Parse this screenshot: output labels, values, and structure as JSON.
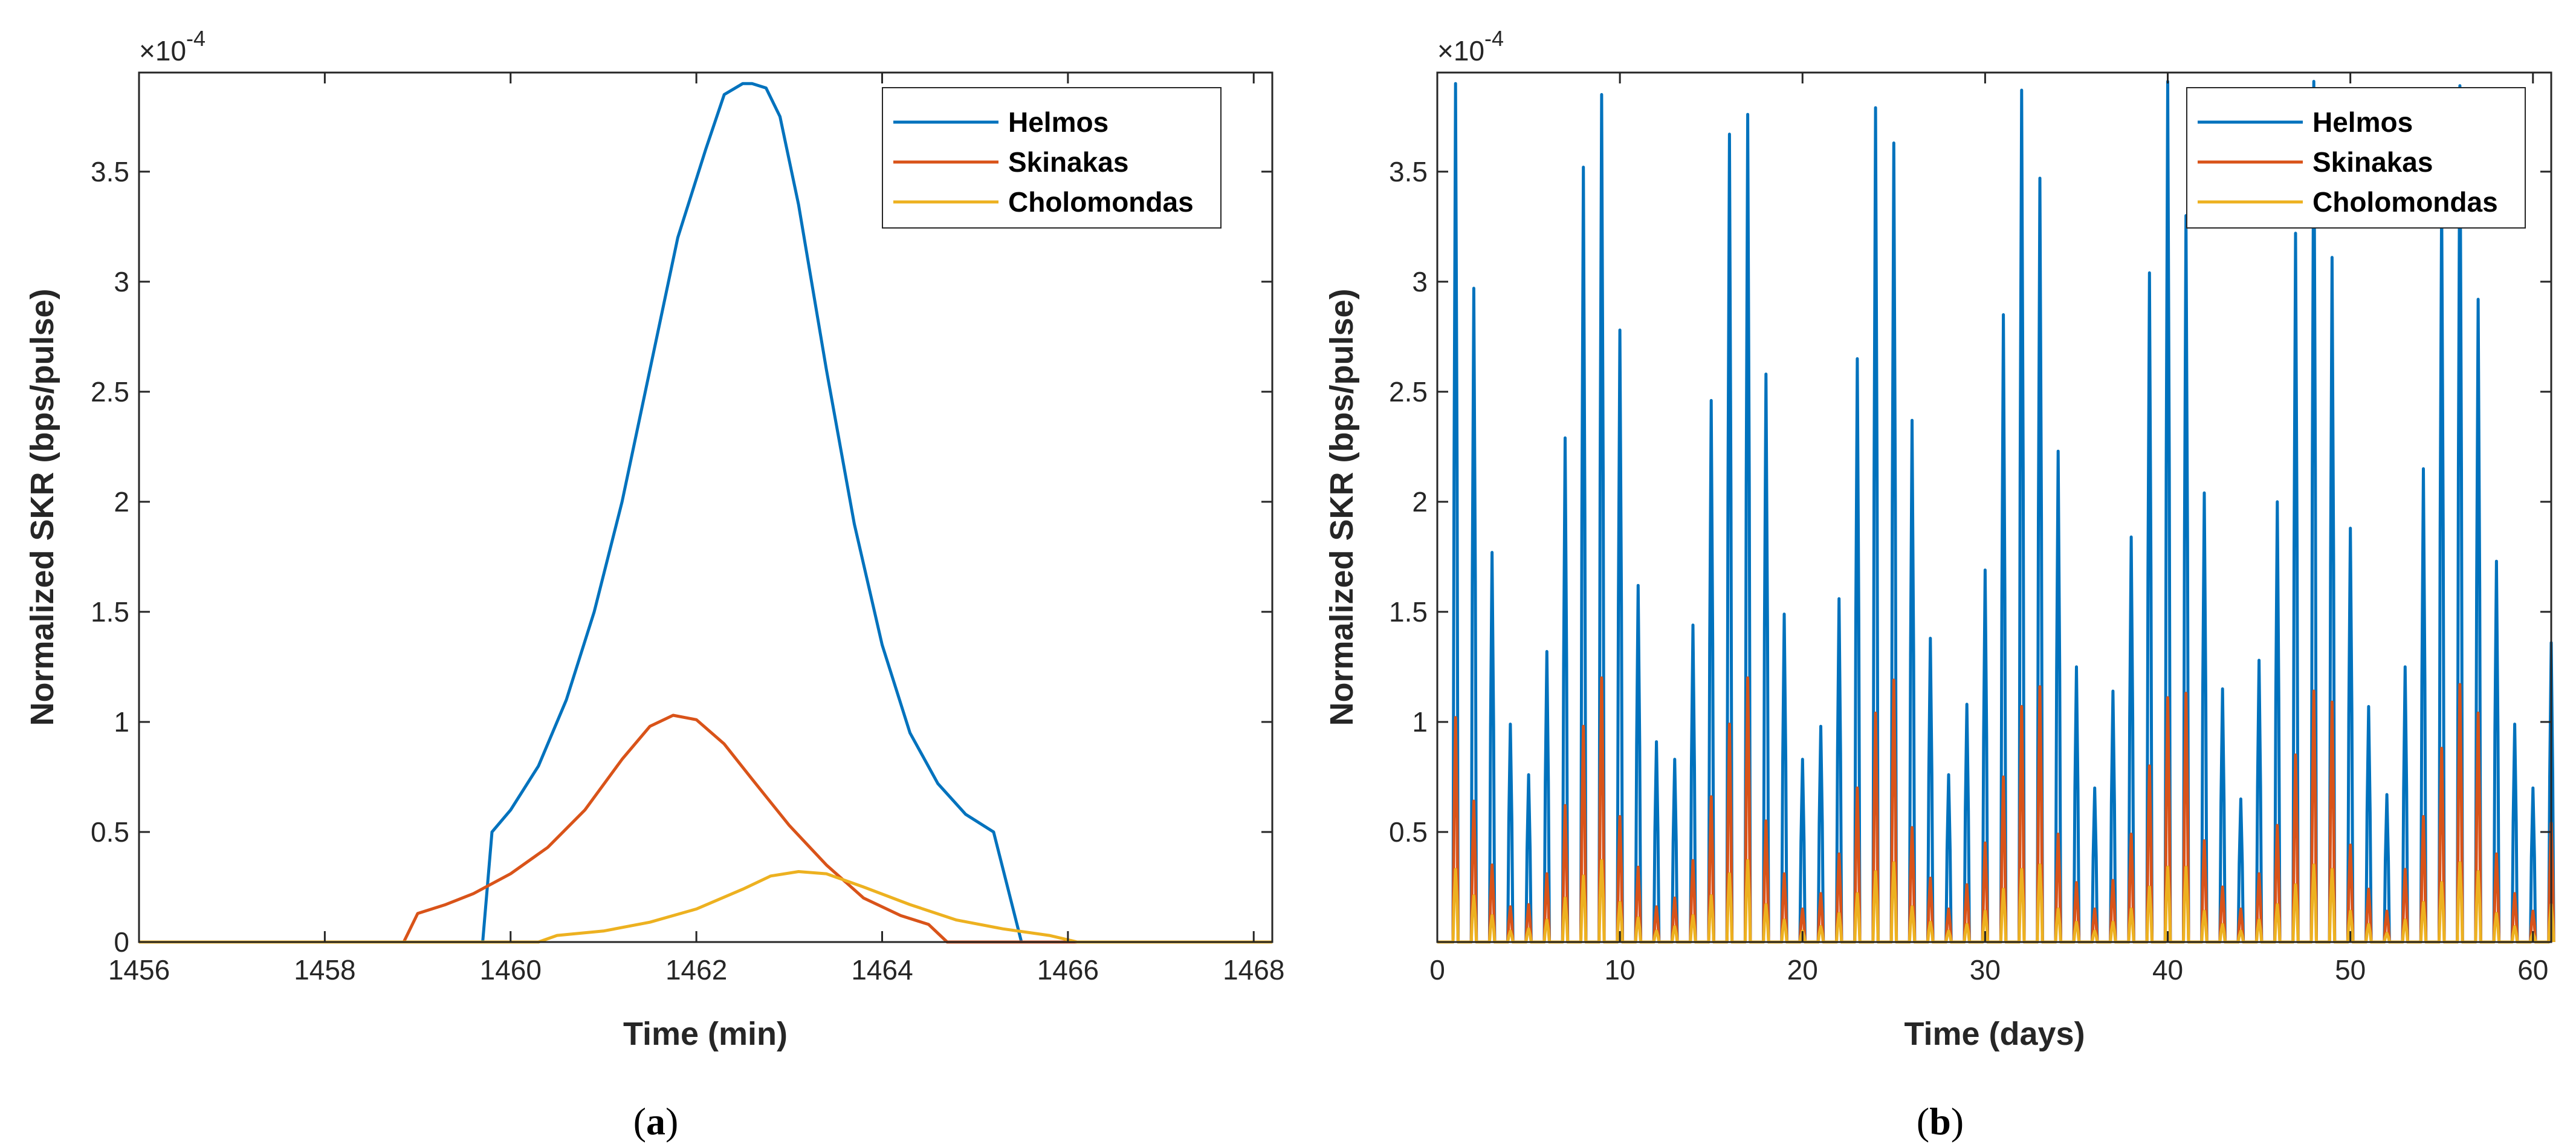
{
  "colors": {
    "helmos": "#0072BD",
    "skinakas": "#D95319",
    "cholomondas": "#EDB120",
    "axis": "#262626"
  },
  "chart_data": [
    {
      "type": "line",
      "panel_label": "a",
      "xlabel": "Time (min)",
      "ylabel": "Normalized SKR (bps/pulse)",
      "y_exponent": "×10",
      "y_exponent_power": "-4",
      "xlim": [
        1456,
        1468.2
      ],
      "ylim": [
        0,
        3.95
      ],
      "y_scale": 0.0001,
      "x_ticks": [
        1456,
        1458,
        1460,
        1462,
        1464,
        1466,
        1468
      ],
      "x_tick_labels": [
        "1456",
        "1458",
        "1460",
        "1462",
        "1464",
        "1466",
        "1468"
      ],
      "y_ticks": [
        0,
        0.5,
        1,
        1.5,
        2,
        2.5,
        3,
        3.5
      ],
      "y_tick_labels": [
        "0",
        "0.5",
        "1",
        "1.5",
        "2",
        "2.5",
        "3",
        "3.5"
      ],
      "legend_position": "top-right",
      "series": [
        {
          "name": "Helmos",
          "x": [
            1456,
            1459.7,
            1459.8,
            1460.0,
            1460.3,
            1460.6,
            1460.9,
            1461.2,
            1461.5,
            1461.8,
            1462.1,
            1462.3,
            1462.5,
            1462.6,
            1462.75,
            1462.9,
            1463.1,
            1463.4,
            1463.7,
            1464.0,
            1464.3,
            1464.6,
            1464.9,
            1465.2,
            1465.35,
            1465.5,
            1468.2
          ],
          "y": [
            0,
            0,
            0.5,
            0.6,
            0.8,
            1.1,
            1.5,
            2.0,
            2.6,
            3.2,
            3.6,
            3.85,
            3.9,
            3.9,
            3.88,
            3.75,
            3.35,
            2.6,
            1.9,
            1.35,
            0.95,
            0.72,
            0.58,
            0.5,
            0.25,
            0,
            0
          ]
        },
        {
          "name": "Skinakas",
          "x": [
            1456,
            1458.85,
            1459.0,
            1459.3,
            1459.6,
            1460.0,
            1460.4,
            1460.8,
            1461.2,
            1461.5,
            1461.75,
            1462.0,
            1462.3,
            1462.6,
            1463.0,
            1463.4,
            1463.8,
            1464.2,
            1464.5,
            1464.7,
            1468.2
          ],
          "y": [
            0,
            0,
            0.13,
            0.17,
            0.22,
            0.31,
            0.43,
            0.6,
            0.83,
            0.98,
            1.03,
            1.01,
            0.9,
            0.74,
            0.53,
            0.35,
            0.2,
            0.12,
            0.08,
            0,
            0
          ]
        },
        {
          "name": "Cholomondas",
          "x": [
            1456,
            1460.3,
            1460.5,
            1461.0,
            1461.5,
            1462.0,
            1462.5,
            1462.8,
            1463.1,
            1463.4,
            1463.8,
            1464.3,
            1464.8,
            1465.3,
            1465.8,
            1466.1,
            1468.2
          ],
          "y": [
            0,
            0,
            0.03,
            0.05,
            0.09,
            0.15,
            0.24,
            0.3,
            0.32,
            0.31,
            0.25,
            0.17,
            0.1,
            0.06,
            0.03,
            0,
            0
          ]
        }
      ]
    },
    {
      "type": "line",
      "panel_label": "b",
      "xlabel": "Time (days)",
      "ylabel": "Normalized SKR (bps/pulse)",
      "y_exponent": "×10",
      "y_exponent_power": "-4",
      "xlim": [
        0,
        61
      ],
      "ylim": [
        0,
        3.95
      ],
      "y_scale": 0.0001,
      "x_ticks": [
        0,
        10,
        20,
        30,
        40,
        50,
        60
      ],
      "x_tick_labels": [
        "0",
        "10",
        "20",
        "30",
        "40",
        "50",
        "60"
      ],
      "y_ticks": [
        0.5,
        1,
        1.5,
        2,
        2.5,
        3,
        3.5
      ],
      "y_tick_labels": [
        "0.5",
        "1",
        "1.5",
        "2",
        "2.5",
        "3",
        "3.5"
      ],
      "legend_position": "top-right",
      "spike_days": [
        1,
        2,
        3,
        4,
        5,
        6,
        7,
        8,
        9,
        10,
        11,
        12,
        13,
        14,
        15,
        16,
        17,
        18,
        19,
        20,
        21,
        22,
        23,
        24,
        25,
        26,
        27,
        28,
        29,
        30,
        31,
        32,
        33,
        34,
        35,
        36,
        37,
        38,
        39,
        40,
        41,
        42,
        43,
        44,
        45,
        46,
        47,
        48,
        49,
        50,
        51,
        52,
        53,
        54,
        55,
        56,
        57,
        58,
        59,
        60,
        61
      ],
      "series": [
        {
          "name": "Helmos",
          "peaks": [
            3.9,
            2.97,
            1.77,
            0.99,
            0.76,
            1.32,
            2.29,
            3.52,
            3.85,
            2.78,
            1.62,
            0.91,
            0.83,
            1.44,
            2.46,
            3.67,
            3.76,
            2.58,
            1.49,
            0.83,
            0.98,
            1.56,
            2.65,
            3.79,
            3.63,
            2.37,
            1.38,
            0.76,
            1.08,
            1.69,
            2.85,
            3.87,
            3.47,
            2.23,
            1.25,
            0.7,
            1.14,
            1.84,
            3.04,
            3.91,
            3.3,
            2.04,
            1.15,
            0.65,
            1.28,
            2.0,
            3.22,
            3.91,
            3.11,
            1.88,
            1.07,
            0.67,
            1.25,
            2.15,
            3.39,
            3.89,
            2.92,
            1.73,
            0.99,
            0.7,
            1.36
          ]
        },
        {
          "name": "Skinakas",
          "peaks": [
            1.02,
            0.64,
            0.35,
            0.16,
            0.17,
            0.31,
            0.62,
            0.98,
            1.2,
            0.57,
            0.34,
            0.16,
            0.2,
            0.37,
            0.66,
            0.99,
            1.2,
            0.55,
            0.31,
            0.15,
            0.22,
            0.4,
            0.7,
            1.04,
            1.19,
            0.52,
            0.29,
            0.15,
            0.26,
            0.45,
            0.75,
            1.07,
            1.16,
            0.49,
            0.27,
            0.15,
            0.28,
            0.49,
            0.8,
            1.11,
            1.13,
            0.46,
            0.25,
            0.15,
            0.31,
            0.53,
            0.85,
            1.14,
            1.09,
            0.44,
            0.24,
            0.14,
            0.33,
            0.57,
            0.88,
            1.17,
            1.04,
            0.4,
            0.22,
            0.14,
            0.54
          ]
        },
        {
          "name": "Cholomondas",
          "peaks": [
            0.33,
            0.21,
            0.12,
            0.05,
            0.06,
            0.1,
            0.2,
            0.3,
            0.37,
            0.18,
            0.11,
            0.05,
            0.07,
            0.12,
            0.21,
            0.31,
            0.37,
            0.17,
            0.1,
            0.05,
            0.07,
            0.13,
            0.22,
            0.32,
            0.36,
            0.16,
            0.09,
            0.05,
            0.08,
            0.14,
            0.24,
            0.33,
            0.35,
            0.15,
            0.09,
            0.05,
            0.09,
            0.15,
            0.25,
            0.34,
            0.34,
            0.14,
            0.08,
            0.05,
            0.1,
            0.17,
            0.26,
            0.35,
            0.33,
            0.14,
            0.08,
            0.04,
            0.1,
            0.18,
            0.27,
            0.36,
            0.32,
            0.13,
            0.07,
            0.04,
            0.17
          ]
        }
      ]
    }
  ]
}
